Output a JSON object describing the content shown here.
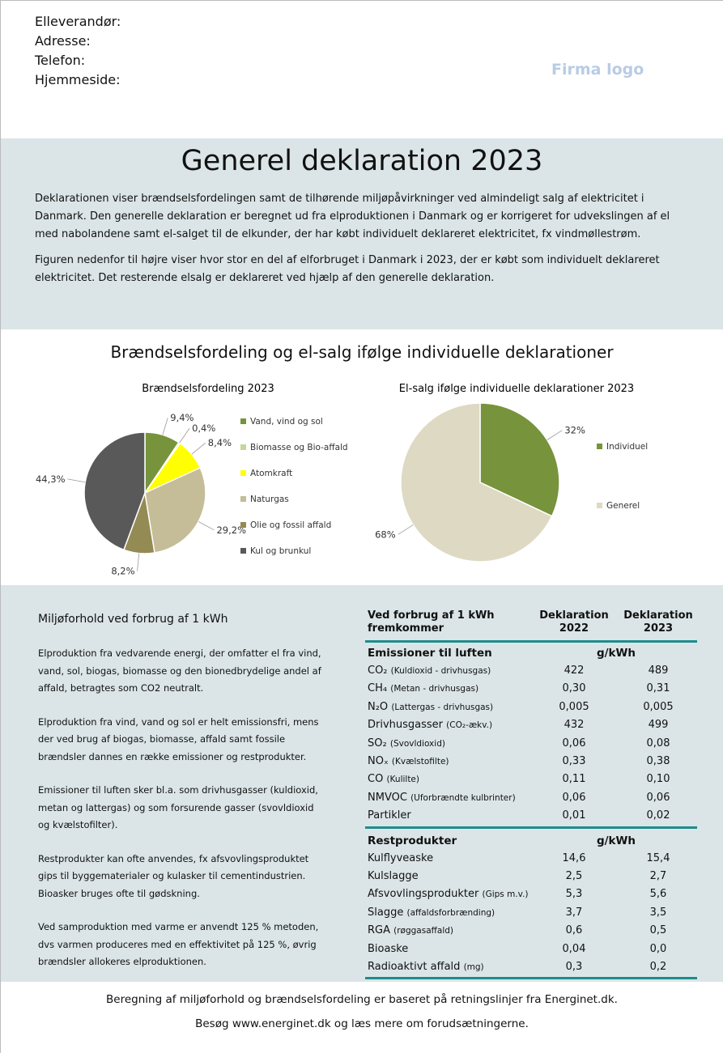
{
  "header": {
    "fields": [
      "Elleverandør:",
      "Adresse:",
      "Telefon:",
      "Hjemmeside:"
    ],
    "logo": "Firma logo"
  },
  "intro": {
    "title": "Generel deklaration 2023",
    "paragraphs": [
      "Deklarationen viser brændselsfordelingen samt de tilhørende miljøpåvirkninger ved almindeligt salg af elektricitet i Danmark. Den generelle deklaration er beregnet ud fra elproduktionen i Danmark og er korrigeret for udvekslingen af el med nabolandene samt el-salget til de elkunder, der har købt individuelt deklareret elektricitet, fx vindmøllestrøm.",
      "Figuren nedenfor til højre viser hvor stor en del af elforbruget i Danmark i 2023, der er købt som individuelt deklareret elektricitet. Det resterende elsalg er deklareret ved hjælp af den generelle deklaration."
    ]
  },
  "section_title": "Brændselsfordeling og el-salg ifølge individuelle deklarationer",
  "chart_data": [
    {
      "type": "pie",
      "title": "Brændselsfordeling 2023",
      "categories": [
        "Vand, vind og sol",
        "Biomasse og Bio-affald",
        "Atomkraft",
        "Naturgas",
        "Olie og fossil affald",
        "Kul og brunkul"
      ],
      "values": [
        9.4,
        0.4,
        8.4,
        29.2,
        8.2,
        44.3
      ],
      "value_labels": [
        "9,4%",
        "0,4%",
        "8,4%",
        "29,2%",
        "8,2%",
        "44,3%"
      ],
      "colors": [
        "#77933c",
        "#c3d69b",
        "#ffff00",
        "#c4bd97",
        "#948a54",
        "#595959"
      ]
    },
    {
      "type": "pie",
      "title": "El-salg ifølge individuelle deklarationer 2023",
      "categories": [
        "Individuel",
        "Generel"
      ],
      "values": [
        32,
        68
      ],
      "value_labels": [
        "32%",
        "68%"
      ],
      "colors": [
        "#77933c",
        "#ddd9c3"
      ]
    }
  ],
  "left_text": {
    "title": "Miljøforhold ved forbrug af 1 kWh",
    "paragraphs": [
      "Elproduktion fra vedvarende energi, der omfatter el  fra vind, vand, sol, biogas, biomasse og den bionedbrydelige andel af affald, betragtes som CO2 neutralt.",
      "Elproduktion fra vind, vand og sol er helt emissionsfri, mens der ved brug af biogas, biomasse, affald samt fossile brændsler dannes en række emissioner og restprodukter.",
      "Emissioner til luften sker bl.a. som drivhusgasser (kuldioxid, metan og lattergas) og som forsurende gasser (svovldioxid og kvælstofilter).",
      "Restprodukter kan ofte anvendes, fx afsvovlingsproduktet gips til byggematerialer og kulasker til cementindustrien. Bioasker bruges  ofte til gødskning.",
      "Ved samproduktion med varme er anvendt 125 % metoden, dvs varmen produceres med en effektivitet på 125 %, øvrig brændsler allokeres elproduktionen."
    ]
  },
  "table": {
    "header": [
      "Ved forbrug af 1 kWh fremkommer",
      "Deklaration 2022",
      "Deklaration 2023"
    ],
    "sections": [
      {
        "title": "Emissioner til luften",
        "unit": "g/kWh",
        "rows": [
          {
            "name": "CO₂",
            "note": "(Kuldioxid - drivhusgas)",
            "v2022": "422",
            "v2023": "489"
          },
          {
            "name": "CH₄",
            "note": "(Metan - drivhusgas)",
            "v2022": "0,30",
            "v2023": "0,31"
          },
          {
            "name": "N₂O",
            "note": "(Lattergas - drivhusgas)",
            "v2022": "0,005",
            "v2023": "0,005"
          },
          {
            "name": "Drivhusgasser",
            "note": "(CO₂-ækv.)",
            "v2022": "432",
            "v2023": "499"
          },
          {
            "name": "SO₂",
            "note": "(Svovldioxid)",
            "v2022": "0,06",
            "v2023": "0,08"
          },
          {
            "name": "NOₓ",
            "note": "(Kvælstofilte)",
            "v2022": "0,33",
            "v2023": "0,38"
          },
          {
            "name": "CO",
            "note": "(Kulilte)",
            "v2022": "0,11",
            "v2023": "0,10"
          },
          {
            "name": "NMVOC",
            "note": "(Uforbrændte kulbrinter)",
            "v2022": "0,06",
            "v2023": "0,06"
          },
          {
            "name": "Partikler",
            "note": null,
            "v2022": "0,01",
            "v2023": "0,02"
          }
        ]
      },
      {
        "title": "Restprodukter",
        "unit": "g/kWh",
        "rows": [
          {
            "name": "Kulflyveaske",
            "note": null,
            "v2022": "14,6",
            "v2023": "15,4"
          },
          {
            "name": "Kulslagge",
            "note": null,
            "v2022": "2,5",
            "v2023": "2,7"
          },
          {
            "name": "Afsvovlingsprodukter",
            "note": "(Gips m.v.)",
            "v2022": "5,3",
            "v2023": "5,6"
          },
          {
            "name": "Slagge",
            "note": "(affaldsforbrænding)",
            "v2022": "3,7",
            "v2023": "3,5"
          },
          {
            "name": "RGA",
            "note": "(røggasaffald)",
            "v2022": "0,6",
            "v2023": "0,5"
          },
          {
            "name": "Bioaske",
            "note": null,
            "v2022": "0,04",
            "v2023": "0,0"
          },
          {
            "name": "Radioaktivt affald",
            "note": "(mg)",
            "v2022": "0,3",
            "v2023": "0,2"
          }
        ]
      }
    ]
  },
  "footer": [
    "Beregning af miljøforhold og brændselsfordeling er baseret på retningslinjer fra Energinet.dk.",
    "Besøg www.energinet.dk og læs mere om forudsætningerne."
  ]
}
